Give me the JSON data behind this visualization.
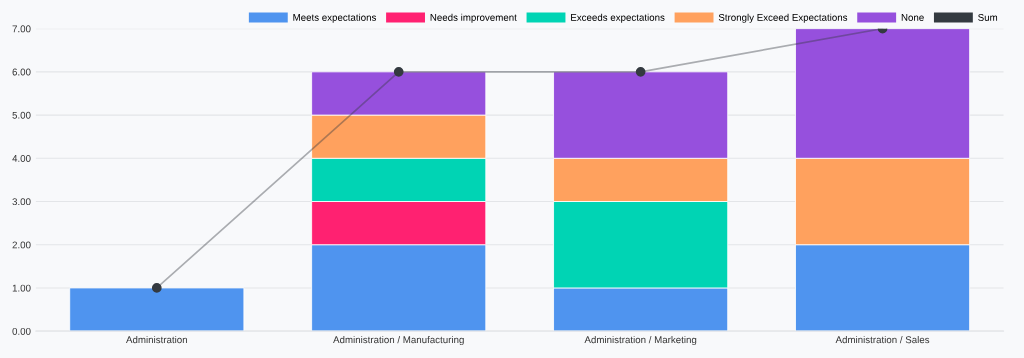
{
  "chart_data": {
    "type": "bar",
    "stacked": true,
    "categories": [
      "Administration",
      "Administration / Manufacturing",
      "Administration / Marketing",
      "Administration / Sales"
    ],
    "series": [
      {
        "name": "Meets expectations",
        "color": "#4f94ef",
        "values": [
          1,
          2,
          1,
          2
        ]
      },
      {
        "name": "Needs improvement",
        "color": "#ff2171",
        "values": [
          null,
          1,
          null,
          null
        ]
      },
      {
        "name": "Exceeds expectations",
        "color": "#00d4b4",
        "values": [
          null,
          1,
          2,
          null
        ]
      },
      {
        "name": "Strongly Exceed Expectations",
        "color": "#ffa15e",
        "values": [
          null,
          1,
          1,
          2
        ]
      },
      {
        "name": "None",
        "color": "#9650dd",
        "values": [
          null,
          1,
          2,
          3
        ]
      },
      {
        "name": "Sum",
        "type": "line",
        "color": "#343a40",
        "values": [
          1,
          6,
          6,
          7
        ]
      }
    ],
    "ylim": [
      0,
      7
    ],
    "yticks": [
      {
        "value": 0,
        "label": "0.00"
      },
      {
        "value": 1,
        "label": "1.00"
      },
      {
        "value": 2,
        "label": "2.00"
      },
      {
        "value": 3,
        "label": "3.00"
      },
      {
        "value": 4,
        "label": "4.00"
      },
      {
        "value": 5,
        "label": "5.00"
      },
      {
        "value": 6,
        "label": "6.00"
      },
      {
        "value": 7,
        "label": "7.00"
      }
    ],
    "grid": "y",
    "legend": "top right",
    "marker": "circle"
  }
}
